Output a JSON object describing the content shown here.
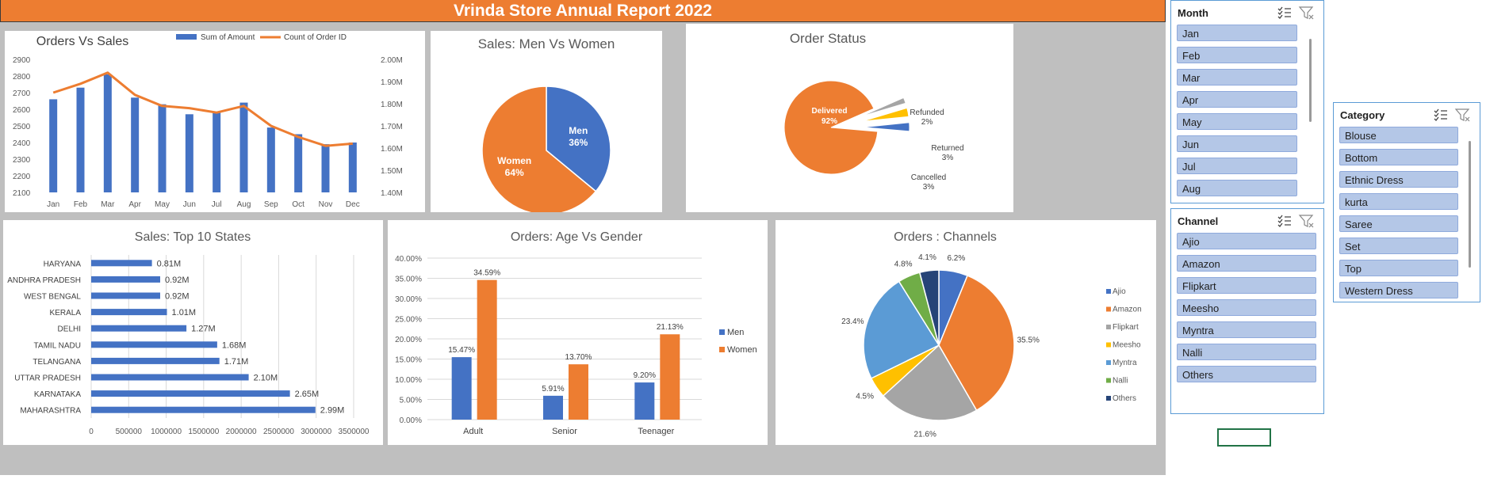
{
  "report_title": "Vrinda Store Annual Report 2022",
  "orders_vs_sales": {
    "chart_data": {
      "type": "bar+line",
      "title": "Orders Vs Sales",
      "categories": [
        "Jan",
        "Feb",
        "Mar",
        "Apr",
        "May",
        "Jun",
        "Jul",
        "Aug",
        "Sep",
        "Oct",
        "Nov",
        "Dec"
      ],
      "series": [
        {
          "name": "Sum of Amount",
          "type": "bar",
          "axis": "left",
          "values": [
            2660,
            2730,
            2810,
            2670,
            2630,
            2570,
            2580,
            2640,
            2490,
            2450,
            2390,
            2400
          ]
        },
        {
          "name": "Count of Order ID",
          "type": "line",
          "axis": "right",
          "values": [
            1.85,
            1.89,
            1.94,
            1.84,
            1.79,
            1.78,
            1.76,
            1.79,
            1.7,
            1.65,
            1.61,
            1.62
          ]
        }
      ],
      "y_left": {
        "min": 2100,
        "max": 2900,
        "ticks": [
          "2100",
          "2200",
          "2300",
          "2400",
          "2500",
          "2600",
          "2700",
          "2800",
          "2900"
        ]
      },
      "y_right": {
        "min": 1.4,
        "max": 2.0,
        "ticks": [
          "1.40M",
          "1.50M",
          "1.60M",
          "1.70M",
          "1.80M",
          "1.90M",
          "2.00M"
        ]
      },
      "colors": {
        "bar": "#4472c4",
        "line": "#ed7d31"
      }
    }
  },
  "men_women": {
    "chart_data": {
      "type": "pie",
      "title": "Sales: Men Vs Women",
      "slices": [
        {
          "label": "Men",
          "pct_label": "36%",
          "value": 36,
          "color": "#4472c4"
        },
        {
          "label": "Women",
          "pct_label": "64%",
          "value": 64,
          "color": "#ed7d31"
        }
      ]
    }
  },
  "order_status": {
    "chart_data": {
      "type": "pie",
      "title": "Order Status",
      "slices": [
        {
          "label": "Delivered",
          "pct_label": "92%",
          "value": 92,
          "color": "#ed7d31"
        },
        {
          "label": "Refunded",
          "pct_label": "2%",
          "value": 2,
          "color": "#a5a5a5"
        },
        {
          "label": "Returned",
          "pct_label": "3%",
          "value": 3,
          "color": "#ffc000"
        },
        {
          "label": "Cancelled",
          "pct_label": "3%",
          "value": 3,
          "color": "#4472c4"
        }
      ]
    }
  },
  "top_states": {
    "chart_data": {
      "type": "bar",
      "orientation": "horizontal",
      "title": "Sales: Top 10 States",
      "categories": [
        "HARYANA",
        "ANDHRA PRADESH",
        "WEST BENGAL",
        "KERALA",
        "DELHI",
        "TAMIL NADU",
        "TELANGANA",
        "UTTAR PRADESH",
        "KARNATAKA",
        "MAHARASHTRA"
      ],
      "values": [
        810000,
        920000,
        920000,
        1010000,
        1270000,
        1680000,
        1710000,
        2100000,
        2650000,
        2990000
      ],
      "labels": [
        "0.81M",
        "0.92M",
        "0.92M",
        "1.01M",
        "1.27M",
        "1.68M",
        "1.71M",
        "2.10M",
        "2.65M",
        "2.99M"
      ],
      "xlim": [
        0,
        3500000
      ],
      "x_ticks": [
        "0",
        "500000",
        "1000000",
        "1500000",
        "2000000",
        "2500000",
        "3000000",
        "3500000"
      ],
      "color": "#4472c4"
    }
  },
  "age_gender": {
    "chart_data": {
      "type": "bar",
      "title": "Orders: Age Vs Gender",
      "categories": [
        "Adult",
        "Senior",
        "Teenager"
      ],
      "series": [
        {
          "name": "Men",
          "values": [
            15.47,
            5.91,
            9.2
          ],
          "labels": [
            "15.47%",
            "5.91%",
            "9.20%"
          ],
          "color": "#4472c4"
        },
        {
          "name": "Women",
          "values": [
            34.59,
            13.7,
            21.13
          ],
          "labels": [
            "34.59%",
            "13.70%",
            "21.13%"
          ],
          "color": "#ed7d31"
        }
      ],
      "ylim": [
        0,
        40
      ],
      "y_ticks": [
        "0.00%",
        "5.00%",
        "10.00%",
        "15.00%",
        "20.00%",
        "25.00%",
        "30.00%",
        "35.00%",
        "40.00%"
      ]
    }
  },
  "channels": {
    "chart_data": {
      "type": "pie",
      "title": "Orders : Channels",
      "slices": [
        {
          "label": "Ajio",
          "pct_label": "6.2%",
          "value": 6.2,
          "color": "#4472c4"
        },
        {
          "label": "Amazon",
          "pct_label": "35.5%",
          "value": 35.5,
          "color": "#ed7d31"
        },
        {
          "label": "Flipkart",
          "pct_label": "21.6%",
          "value": 21.6,
          "color": "#a5a5a5"
        },
        {
          "label": "Meesho",
          "pct_label": "4.5%",
          "value": 4.5,
          "color": "#ffc000"
        },
        {
          "label": "Myntra",
          "pct_label": "23.4%",
          "value": 23.4,
          "color": "#5b9bd5"
        },
        {
          "label": "Nalli",
          "pct_label": "4.8%",
          "value": 4.8,
          "color": "#70ad47"
        },
        {
          "label": "Others",
          "pct_label": "4.1%",
          "value": 4.1,
          "color": "#264478"
        }
      ]
    }
  },
  "slicers": {
    "month": {
      "title": "Month",
      "items": [
        "Jan",
        "Feb",
        "Mar",
        "Apr",
        "May",
        "Jun",
        "Jul",
        "Aug"
      ]
    },
    "channel": {
      "title": "Channel",
      "items": [
        "Ajio",
        "Amazon",
        "Flipkart",
        "Meesho",
        "Myntra",
        "Nalli",
        "Others"
      ]
    },
    "category": {
      "title": "Category",
      "items": [
        "Blouse",
        "Bottom",
        "Ethnic Dress",
        "kurta",
        "Saree",
        "Set",
        "Top",
        "Western Dress"
      ]
    },
    "icons": [
      "multi-select-icon",
      "clear-filter-icon"
    ]
  }
}
